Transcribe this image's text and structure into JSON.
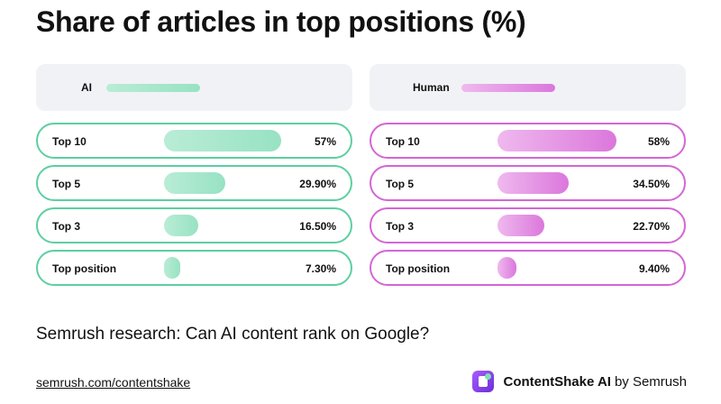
{
  "title": "Share of articles in top positions (%)",
  "subtitle": "Semrush research: Can AI content rank on Google?",
  "source": "semrush.com/contentshake",
  "brand": {
    "name": "ContentShake AI",
    "by": "by Semrush",
    "icon": "contentshake-logo-icon"
  },
  "colors": {
    "ai": "#98e2c3",
    "ai_border": "#5ccfa1",
    "human": "#db77dc",
    "human_border": "#d466d6"
  },
  "chart_data": {
    "type": "bar",
    "title": "Share of articles in top positions (%)",
    "categories": [
      "Top 10",
      "Top 5",
      "Top 3",
      "Top position"
    ],
    "series": [
      {
        "name": "AI",
        "values": [
          57,
          29.9,
          16.5,
          7.3
        ],
        "labels": [
          "57%",
          "29.90%",
          "16.50%",
          "7.30%"
        ]
      },
      {
        "name": "Human",
        "values": [
          58,
          34.5,
          22.7,
          9.4
        ],
        "labels": [
          "58%",
          "34.50%",
          "22.70%",
          "9.40%"
        ]
      }
    ],
    "ylim": [
      0,
      58
    ],
    "grid": false,
    "legend": "top"
  }
}
